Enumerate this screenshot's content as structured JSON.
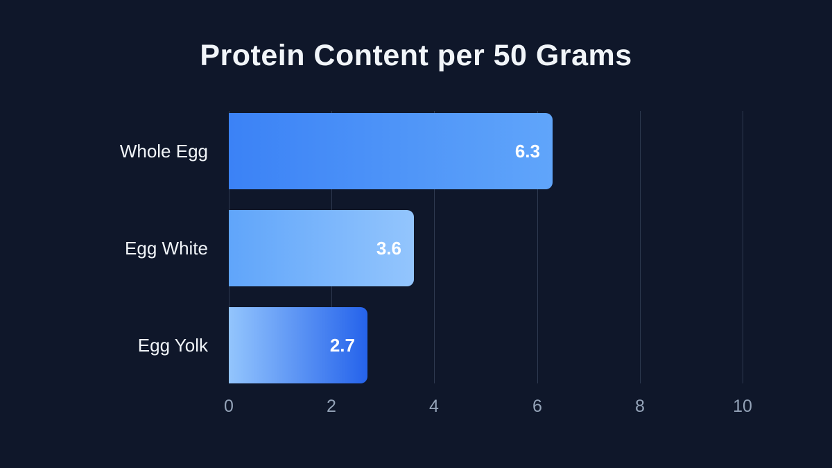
{
  "chart_data": {
    "type": "bar",
    "orientation": "horizontal",
    "title": "Protein Content per 50 Grams",
    "categories": [
      "Whole Egg",
      "Egg White",
      "Egg Yolk"
    ],
    "values": [
      6.3,
      3.6,
      2.7
    ],
    "value_labels": [
      "6.3",
      "3.6",
      "2.7"
    ],
    "xlabel": "",
    "ylabel": "",
    "xlim": [
      0,
      10
    ],
    "x_ticks": [
      "0",
      "2",
      "4",
      "6",
      "8",
      "10"
    ],
    "x_tick_values": [
      0,
      2,
      4,
      6,
      8,
      10
    ],
    "grid": true,
    "legend": "none",
    "bar_gradients": [
      {
        "from": "#3b82f6",
        "to": "#60a5fa"
      },
      {
        "from": "#60a5fa",
        "to": "#93c5fd"
      },
      {
        "from": "#93c5fd",
        "to": "#2563eb"
      }
    ],
    "colors": {
      "background": "#0f172a",
      "title_text": "#f1f5f9",
      "category_text": "#f1f5f9",
      "tick_text": "#94a3b8",
      "gridline": "#2e3a50",
      "value_text": "#ffffff"
    }
  }
}
